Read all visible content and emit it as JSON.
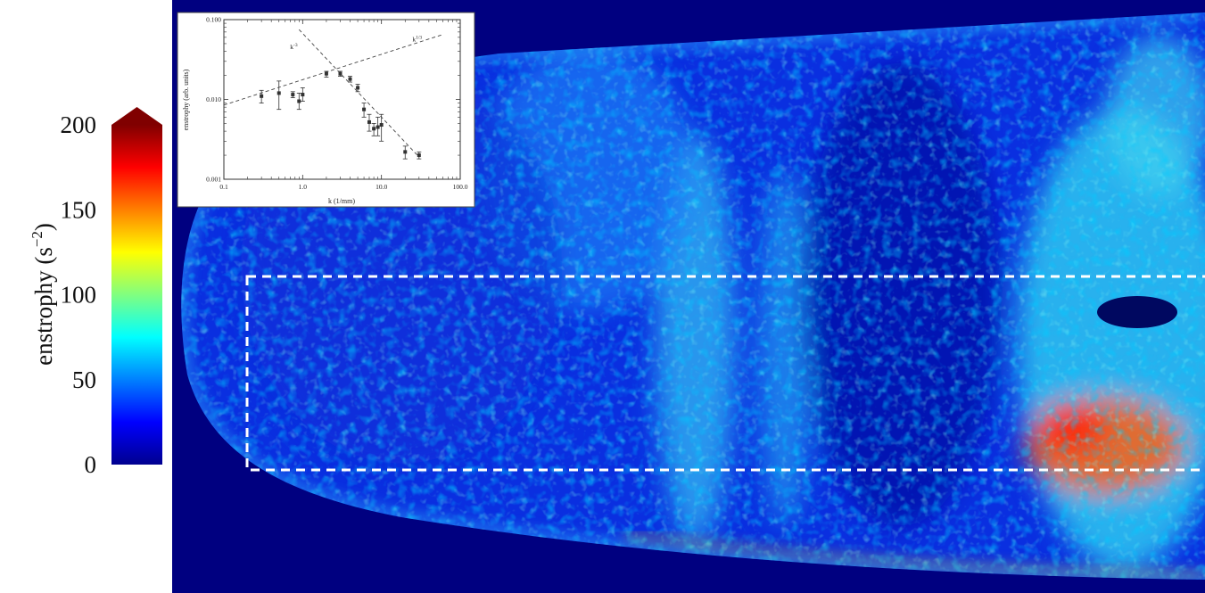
{
  "colorbar": {
    "label": "enstrophy (s",
    "label_sup": "−2",
    "label_end": ")",
    "ticks": [
      "0",
      "50",
      "100",
      "150",
      "200"
    ],
    "tick_values": [
      0,
      50,
      100,
      150,
      200
    ],
    "range": [
      0,
      200
    ],
    "extend": "max",
    "colormap": "jet",
    "colors": [
      "#00008f",
      "#0000ff",
      "#0080ff",
      "#00ffff",
      "#80ff80",
      "#ffff00",
      "#ff8000",
      "#ff0000",
      "#800000"
    ]
  },
  "field": {
    "background": "#000080",
    "region_of_interest": "dashed white rectangle"
  },
  "chart_data": [
    {
      "type": "heatmap",
      "title": "",
      "colorbar_label": "enstrophy (s^-2)",
      "vmin": 0,
      "vmax": 200,
      "colormap": "jet"
    },
    {
      "type": "scatter",
      "x_scale": "log",
      "y_scale": "log",
      "xlim": [
        0.1,
        100.0
      ],
      "ylim": [
        0.001,
        0.1
      ],
      "xlabel": "k (1/mm)",
      "ylabel": "enstrophy (arb. units)",
      "x_tick_labels": [
        "0.1",
        "1.0",
        "10.0",
        "100.0"
      ],
      "y_tick_labels": [
        "0.001",
        "0.010",
        "0.100"
      ],
      "grid": false,
      "series": [
        {
          "x": [
            0.3,
            0.5,
            0.75,
            0.9,
            1.0,
            2.0,
            3.0,
            4.0,
            5.0,
            6.0,
            7.0,
            8.0,
            9.0,
            10.0,
            20.0,
            30.0
          ],
          "y": [
            0.011,
            0.012,
            0.0115,
            0.0095,
            0.0115,
            0.021,
            0.021,
            0.018,
            0.014,
            0.0075,
            0.0052,
            0.0043,
            0.0045,
            0.0048,
            0.0022,
            0.002
          ],
          "err_low": [
            0.009,
            0.0075,
            0.0105,
            0.0075,
            0.0095,
            0.019,
            0.0195,
            0.0165,
            0.0125,
            0.006,
            0.004,
            0.0035,
            0.0035,
            0.003,
            0.0018,
            0.0018
          ],
          "err_high": [
            0.013,
            0.017,
            0.0125,
            0.012,
            0.014,
            0.0225,
            0.0225,
            0.0195,
            0.0155,
            0.009,
            0.0065,
            0.005,
            0.006,
            0.0065,
            0.0026,
            0.0022
          ]
        }
      ],
      "reference_lines": [
        {
          "label": "k",
          "exp": "1/3",
          "x": [
            0.1,
            60.0
          ],
          "y": [
            0.0085,
            0.065
          ]
        },
        {
          "label": "k",
          "exp": "-3",
          "x": [
            0.9,
            30.0
          ],
          "y": [
            0.075,
            0.0019
          ]
        }
      ]
    }
  ]
}
